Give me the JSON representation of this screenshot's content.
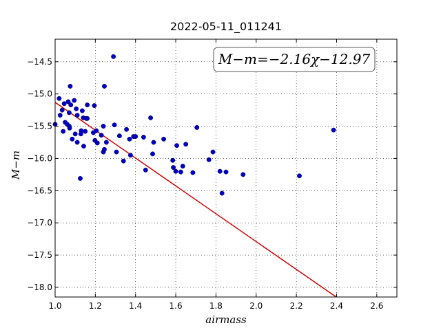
{
  "chart_data": {
    "type": "scatter",
    "title": "2022-05-11_011241",
    "xlabel": "airmass",
    "ylabel": "M−m",
    "xlim": [
      1.0,
      2.7
    ],
    "ylim": [
      -18.15,
      -14.15
    ],
    "x_ticks": [
      1.0,
      1.2,
      1.4,
      1.6,
      1.8,
      2.0,
      2.2,
      2.4,
      2.6
    ],
    "x_tick_labels": [
      "1.0",
      "1.2",
      "1.4",
      "1.6",
      "1.8",
      "2.0",
      "2.2",
      "2.4",
      "2.6"
    ],
    "y_ticks": [
      -14.5,
      -15.0,
      -15.5,
      -16.0,
      -16.5,
      -17.0,
      -17.5,
      -18.0
    ],
    "y_tick_labels": [
      "−14.5",
      "−15.0",
      "−15.5",
      "−16.0",
      "−16.5",
      "−17.0",
      "−17.5",
      "−18.0"
    ],
    "grid": true,
    "annotation": "M−m=−2.16χ−12.97",
    "fit": {
      "slope": -2.16,
      "intercept": -12.97,
      "color": "#d00000"
    },
    "point_color": "#0000cc",
    "points": [
      [
        1.0,
        -15.47
      ],
      [
        1.02,
        -15.07
      ],
      [
        1.025,
        -15.33
      ],
      [
        1.035,
        -15.25
      ],
      [
        1.04,
        -15.58
      ],
      [
        1.045,
        -15.15
      ],
      [
        1.05,
        -15.44
      ],
      [
        1.06,
        -15.47
      ],
      [
        1.065,
        -15.12
      ],
      [
        1.07,
        -15.29
      ],
      [
        1.07,
        -15.5
      ],
      [
        1.072,
        -15.53
      ],
      [
        1.075,
        -14.88
      ],
      [
        1.078,
        -15.17
      ],
      [
        1.085,
        -15.7
      ],
      [
        1.095,
        -15.1
      ],
      [
        1.1,
        -15.62
      ],
      [
        1.105,
        -15.23
      ],
      [
        1.11,
        -15.33
      ],
      [
        1.11,
        -15.75
      ],
      [
        1.125,
        -16.31
      ],
      [
        1.128,
        -15.62
      ],
      [
        1.13,
        -15.57
      ],
      [
        1.135,
        -15.26
      ],
      [
        1.14,
        -15.37
      ],
      [
        1.142,
        -15.81
      ],
      [
        1.15,
        -15.58
      ],
      [
        1.155,
        -15.38
      ],
      [
        1.16,
        -15.17
      ],
      [
        1.16,
        -15.38
      ],
      [
        1.19,
        -15.6
      ],
      [
        1.195,
        -15.18
      ],
      [
        1.198,
        -15.72
      ],
      [
        1.205,
        -15.57
      ],
      [
        1.21,
        -15.76
      ],
      [
        1.23,
        -15.64
      ],
      [
        1.24,
        -15.5
      ],
      [
        1.24,
        -15.9
      ],
      [
        1.245,
        -14.88
      ],
      [
        1.245,
        -15.86
      ],
      [
        1.255,
        -15.75
      ],
      [
        1.29,
        -14.42
      ],
      [
        1.295,
        -15.48
      ],
      [
        1.305,
        -15.9
      ],
      [
        1.32,
        -15.65
      ],
      [
        1.34,
        -16.04
      ],
      [
        1.355,
        -15.55
      ],
      [
        1.37,
        -15.7
      ],
      [
        1.375,
        -15.95
      ],
      [
        1.39,
        -15.66
      ],
      [
        1.4,
        -15.66
      ],
      [
        1.44,
        -15.67
      ],
      [
        1.45,
        -16.18
      ],
      [
        1.475,
        -15.37
      ],
      [
        1.485,
        -15.93
      ],
      [
        1.49,
        -15.75
      ],
      [
        1.54,
        -15.7
      ],
      [
        1.585,
        -16.03
      ],
      [
        1.588,
        -16.14
      ],
      [
        1.6,
        -16.2
      ],
      [
        1.605,
        -15.8
      ],
      [
        1.625,
        -16.21
      ],
      [
        1.635,
        -16.12
      ],
      [
        1.65,
        -15.78
      ],
      [
        1.685,
        -16.22
      ],
      [
        1.705,
        -15.52
      ],
      [
        1.765,
        -16.02
      ],
      [
        1.785,
        -15.9
      ],
      [
        1.82,
        -16.2
      ],
      [
        1.83,
        -16.54
      ],
      [
        1.85,
        -16.21
      ],
      [
        1.935,
        -16.25
      ],
      [
        2.215,
        -16.27
      ],
      [
        2.385,
        -15.56
      ]
    ]
  }
}
